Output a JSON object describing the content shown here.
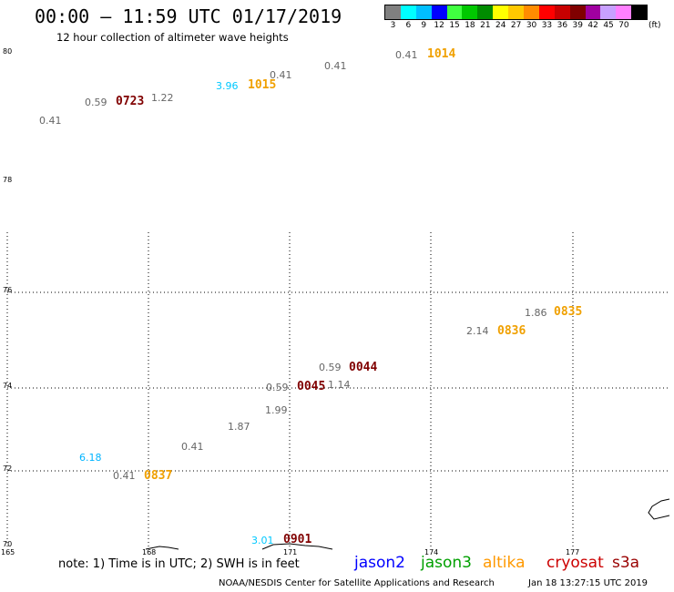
{
  "title": "00:00 – 11:59 UTC 01/17/2019",
  "subtitle": "12 hour collection of altimeter wave heights",
  "legend": {
    "unit": "(ft)",
    "bins": [
      {
        "label": "3",
        "color": "#808080"
      },
      {
        "label": "6",
        "color": "#00ffff"
      },
      {
        "label": "9",
        "color": "#00bfff"
      },
      {
        "label": "12",
        "color": "#0000ff"
      },
      {
        "label": "15",
        "color": "#40ff40"
      },
      {
        "label": "18",
        "color": "#00c800"
      },
      {
        "label": "21",
        "color": "#008c00"
      },
      {
        "label": "24",
        "color": "#ffff00"
      },
      {
        "label": "27",
        "color": "#ffc800"
      },
      {
        "label": "30",
        "color": "#ff8c00"
      },
      {
        "label": "33",
        "color": "#ff0000"
      },
      {
        "label": "36",
        "color": "#c80000"
      },
      {
        "label": "39",
        "color": "#800000"
      },
      {
        "label": "42",
        "color": "#a000a0"
      },
      {
        "label": "45",
        "color": "#c8a0ff"
      },
      {
        "label": "70",
        "color": "#ff80ff"
      },
      {
        "label": "",
        "color": "#000000"
      }
    ]
  },
  "lat_labels": [
    "80",
    "78",
    "76",
    "74",
    "72",
    "70"
  ],
  "lon_labels": [
    "165",
    "168",
    "171",
    "174",
    "177"
  ],
  "wave_heights": [
    {
      "value": "0.41",
      "color": "#666666"
    },
    {
      "value": "0.59",
      "color": "#666666"
    },
    {
      "value": "1.22",
      "color": "#666666"
    },
    {
      "value": "3.96",
      "color": "#00c8ff"
    },
    {
      "value": "0.41",
      "color": "#666666"
    },
    {
      "value": "0.41",
      "color": "#666666"
    },
    {
      "value": "0.41",
      "color": "#666666"
    },
    {
      "value": "1.86",
      "color": "#666666"
    },
    {
      "value": "2.14",
      "color": "#666666"
    },
    {
      "value": "0.59",
      "color": "#666666"
    },
    {
      "value": "0.59",
      "color": "#666666"
    },
    {
      "value": "1.14",
      "color": "#666666"
    },
    {
      "value": "1.99",
      "color": "#666666"
    },
    {
      "value": "1.87",
      "color": "#666666"
    },
    {
      "value": "0.41",
      "color": "#666666"
    },
    {
      "value": "6.18",
      "color": "#00b4ff"
    },
    {
      "value": "0.41",
      "color": "#666666"
    },
    {
      "value": "3.01",
      "color": "#00c8ff"
    }
  ],
  "pass_times": [
    {
      "time": "0723",
      "color": "#800000"
    },
    {
      "time": "1015",
      "color": "#f0a000"
    },
    {
      "time": "1014",
      "color": "#f0a000"
    },
    {
      "time": "0835",
      "color": "#f0a000"
    },
    {
      "time": "0836",
      "color": "#f0a000"
    },
    {
      "time": "0044",
      "color": "#800000"
    },
    {
      "time": "0045",
      "color": "#800000"
    },
    {
      "time": "0837",
      "color": "#f0a000"
    },
    {
      "time": "0901",
      "color": "#800000"
    }
  ],
  "note": "note: 1) Time is in UTC; 2) SWH is in feet",
  "satellites": [
    {
      "name": "jason2",
      "color": "#0000ff"
    },
    {
      "name": "jason3",
      "color": "#00a000"
    },
    {
      "name": "altika",
      "color": "#ff9900"
    },
    {
      "name": "cryosat",
      "color": "#cc0000"
    },
    {
      "name": "s3a",
      "color": "#990000"
    }
  ],
  "footer": "NOAA/NESDIS Center for Satellite Applications and Research",
  "timestamp": "Jan 18 13:27:15 UTC 2019"
}
